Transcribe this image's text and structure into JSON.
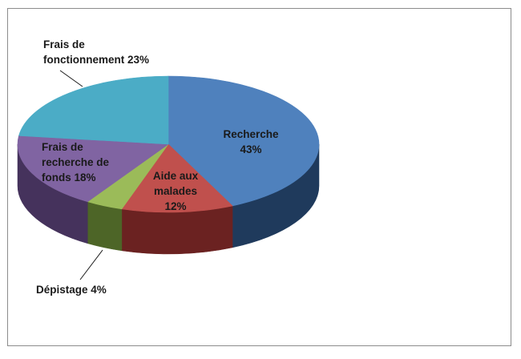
{
  "chart_data": {
    "type": "pie",
    "title": "",
    "slices": [
      {
        "name": "Recherche",
        "value": 43,
        "value_label": "43%",
        "color": "#4f81bd",
        "side_color": "#1f3a5c",
        "label_lines": [
          "Recherche",
          "43%"
        ]
      },
      {
        "name": "Aide aux malades",
        "value": 12,
        "value_label": "12%",
        "color": "#c0504d",
        "side_color": "#6b2221",
        "label_lines": [
          "Aide aux",
          "malades",
          "12%"
        ]
      },
      {
        "name": "Dépistage",
        "value": 4,
        "value_label": "4%",
        "color": "#9bbb59",
        "side_color": "#4d6527",
        "label_lines": [
          "Dépistage 4%"
        ]
      },
      {
        "name": "Frais de recherche de fonds",
        "value": 18,
        "value_label": "18%",
        "color": "#8064a2",
        "side_color": "#45325c",
        "label_lines": [
          "Frais de",
          "recherche de",
          "fonds 18%"
        ]
      },
      {
        "name": "Frais de fonctionnement",
        "value": 23,
        "value_label": "23%",
        "color": "#4bacc6",
        "side_color": "#23616f",
        "label_lines": [
          "Frais de",
          "fonctionnement 23%"
        ]
      }
    ]
  }
}
